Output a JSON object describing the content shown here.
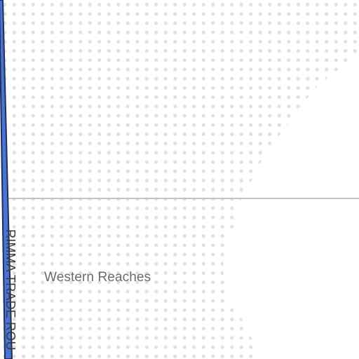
{
  "map": {
    "region_label": "Western Reaches",
    "road_label": "RIMMA TRADE ROU",
    "colors": {
      "background": "#ffffff",
      "dots": "#e2e0d8",
      "road_fill": "#4a74d2",
      "road_outline": "#1f2e5a",
      "boundary_line": "#c4c4c4",
      "region_text": "#6b6b6b",
      "road_text": "#3a3a3a"
    }
  }
}
